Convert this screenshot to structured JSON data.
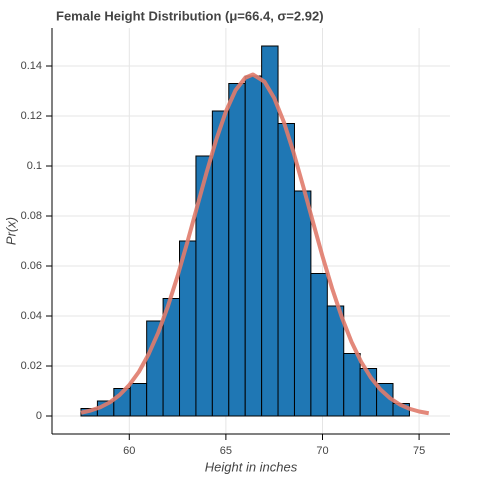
{
  "chart_data": {
    "type": "histogram",
    "title": "Female Height Distribution (μ=66.4, σ=2.92)",
    "x_label": "Height in inches",
    "y_label": "Pr(x)",
    "bins": [
      57.5,
      58.35,
      59.2,
      60.05,
      60.9,
      61.75,
      62.6,
      63.45,
      64.3,
      65.15,
      66.0,
      66.85,
      67.7,
      68.55,
      69.4,
      70.25,
      71.1,
      71.95,
      72.8,
      73.65,
      74.5
    ],
    "values": [
      0.003,
      0.006,
      0.011,
      0.013,
      0.038,
      0.047,
      0.07,
      0.104,
      0.122,
      0.133,
      0.136,
      0.148,
      0.117,
      0.09,
      0.057,
      0.044,
      0.025,
      0.019,
      0.013,
      0.005
    ],
    "color": "#1f77b4",
    "edge_color": "#000000",
    "pdf": {
      "type": "line",
      "color": "#e07b6c",
      "x": [
        57.5,
        58,
        58.5,
        59,
        59.5,
        60,
        60.5,
        61,
        61.5,
        62,
        62.5,
        63,
        63.5,
        64,
        64.5,
        65,
        65.5,
        66,
        66.4,
        67,
        67.5,
        68,
        68.5,
        69,
        69.5,
        70,
        70.5,
        71,
        71.5,
        72,
        72.5,
        73,
        73.5,
        74,
        74.5,
        75,
        75.5
      ],
      "values": [
        0.0013,
        0.0022,
        0.0035,
        0.0055,
        0.0084,
        0.0124,
        0.0177,
        0.0247,
        0.0334,
        0.0439,
        0.056,
        0.0694,
        0.0834,
        0.0974,
        0.1105,
        0.1218,
        0.1303,
        0.1353,
        0.1366,
        0.1337,
        0.1272,
        0.1176,
        0.1055,
        0.0919,
        0.0778,
        0.0639,
        0.051,
        0.0395,
        0.0297,
        0.0217,
        0.0154,
        0.0106,
        0.0071,
        0.0046,
        0.0029,
        0.0018,
        0.0011
      ]
    },
    "xlim": [
      56.0,
      76.6
    ],
    "ylim": [
      -0.0072,
      0.1552
    ],
    "xticks": [
      60,
      65,
      70,
      75
    ],
    "yticks": [
      0,
      0.02,
      0.04,
      0.06,
      0.08,
      0.1,
      0.12,
      0.14
    ],
    "grid": true
  }
}
